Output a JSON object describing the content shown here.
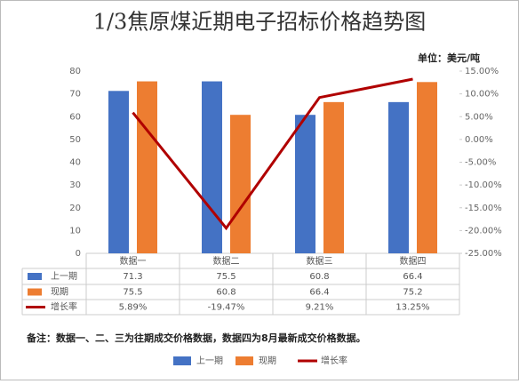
{
  "chart_data": {
    "type": "bar",
    "title": "1/3焦原煤近期电子招标价格趋势图",
    "unit": "单位：美元/吨",
    "note": "备注：数据一、二、三为往期成交价格数据，数据四为8月最新成交价格数据。",
    "categories": [
      "数据一",
      "数据二",
      "数据三",
      "数据四"
    ],
    "series": [
      {
        "name": "上一期",
        "type": "bar",
        "color": "#4472c4",
        "values": [
          71.3,
          75.5,
          60.8,
          66.4
        ]
      },
      {
        "name": "现期",
        "type": "bar",
        "color": "#ed7d31",
        "values": [
          75.5,
          60.8,
          66.4,
          75.2
        ]
      },
      {
        "name": "增长率",
        "type": "line",
        "axis": "y2",
        "color": "#b00000",
        "values": [
          5.89,
          -19.47,
          9.21,
          13.25
        ],
        "value_labels": [
          "5.89%",
          "-19.47%",
          "9.21%",
          "13.25%"
        ]
      }
    ],
    "ylim": [
      0,
      80
    ],
    "yticks": [
      0,
      10,
      20,
      30,
      40,
      50,
      60,
      70,
      80
    ],
    "y2lim": [
      -25,
      15
    ],
    "y2ticks": [
      {
        "value": -25,
        "label": "-25.00%"
      },
      {
        "value": -20,
        "label": "-20.00%"
      },
      {
        "value": -15,
        "label": "-15.00%"
      },
      {
        "value": -10,
        "label": "-10.00%"
      },
      {
        "value": -5,
        "label": "-5.00%"
      },
      {
        "value": 0,
        "label": "0.00%"
      },
      {
        "value": 5,
        "label": "5.00%"
      },
      {
        "value": 10,
        "label": "10.00%"
      },
      {
        "value": 15,
        "label": "15.00%"
      }
    ],
    "grid": false
  }
}
